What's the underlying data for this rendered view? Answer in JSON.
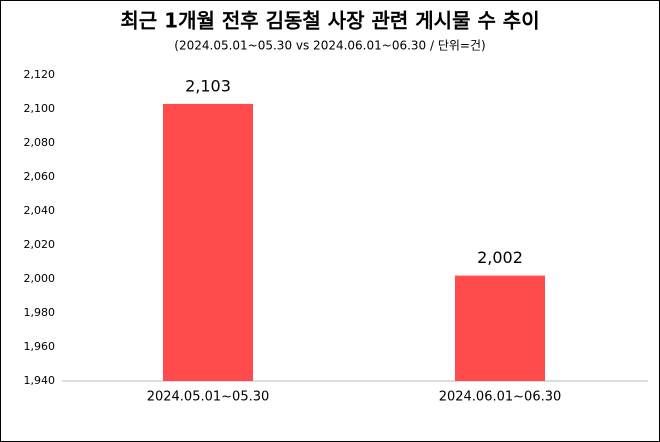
{
  "chart_data": {
    "type": "bar",
    "title": "최근 1개월 전후 김동철 사장 관련 게시물 수 추이",
    "subtitle": "(2024.05.01~05.30 vs 2024.06.01~06.30 / 단위=건)",
    "categories": [
      "2024.05.01~05.30",
      "2024.06.01~06.30"
    ],
    "values": [
      2103,
      2002
    ],
    "value_labels": [
      "2,103",
      "2,002"
    ],
    "color": "#ff4b4b",
    "ylim": [
      1940,
      2120
    ],
    "yticks": [
      {
        "value": 1940,
        "label": "1,940"
      },
      {
        "value": 1960,
        "label": "1,960"
      },
      {
        "value": 1980,
        "label": "1,980"
      },
      {
        "value": 2000,
        "label": "2,000"
      },
      {
        "value": 2020,
        "label": "2,020"
      },
      {
        "value": 2040,
        "label": "2,040"
      },
      {
        "value": 2060,
        "label": "2,060"
      },
      {
        "value": 2080,
        "label": "2,080"
      },
      {
        "value": 2100,
        "label": "2,100"
      },
      {
        "value": 2120,
        "label": "2,120"
      }
    ],
    "grid": false
  }
}
